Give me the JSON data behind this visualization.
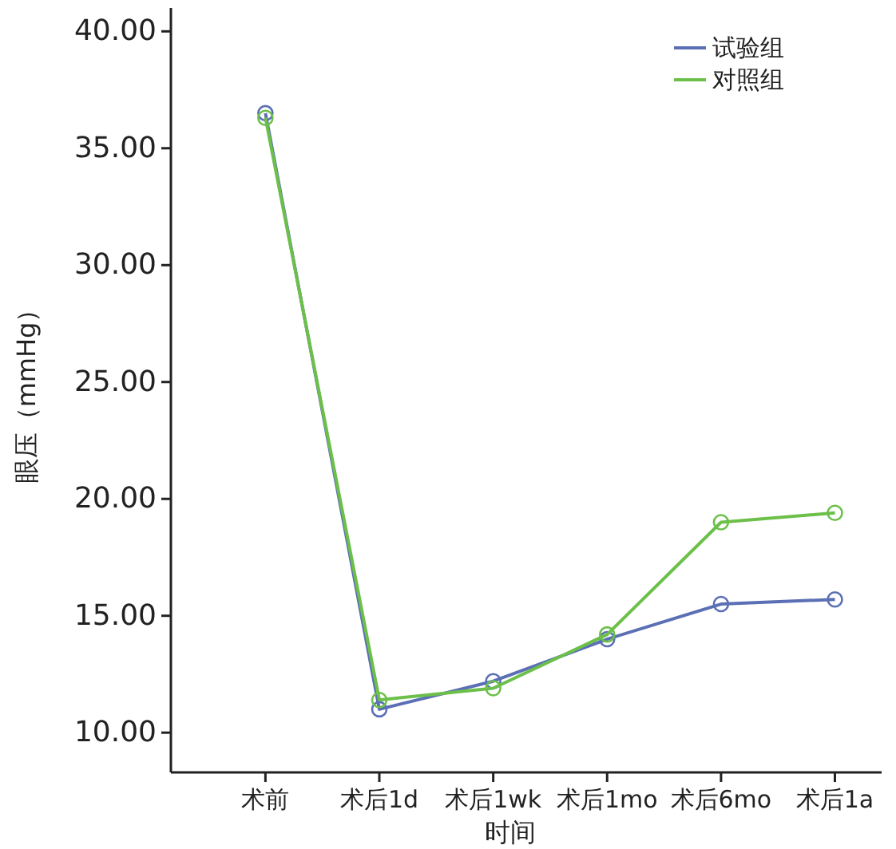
{
  "chart_data": {
    "type": "line",
    "xlabel": "时间",
    "ylabel": "眼压（mmHg）",
    "categories": [
      "术前",
      "术后1d",
      "术后1wk",
      "术后1mo",
      "术后6mo",
      "术后1a"
    ],
    "series": [
      {
        "name": "试验组",
        "color": "#5b6fb5",
        "values": [
          36.5,
          11.0,
          12.2,
          14.0,
          15.5,
          15.7
        ]
      },
      {
        "name": "对照组",
        "color": "#6cc04a",
        "values": [
          36.3,
          11.4,
          11.9,
          14.2,
          19.0,
          19.4
        ]
      }
    ],
    "ylim": [
      8.3,
      41.0
    ],
    "yticks": [
      {
        "value": 10,
        "label": "10.00"
      },
      {
        "value": 15,
        "label": "15.00"
      },
      {
        "value": 20,
        "label": "20.00"
      },
      {
        "value": 25,
        "label": "25.00"
      },
      {
        "value": 30,
        "label": "30.00"
      },
      {
        "value": 35,
        "label": "35.00"
      },
      {
        "value": 40,
        "label": "40.00"
      }
    ],
    "marker": "circle",
    "legend": "top right",
    "grid": false
  }
}
